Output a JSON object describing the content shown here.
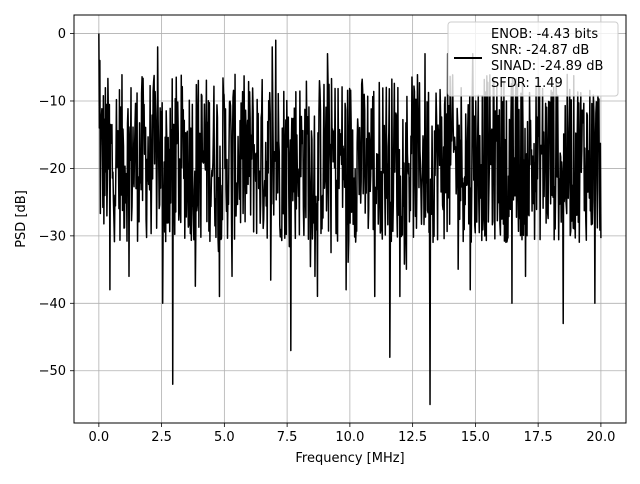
{
  "chart_data": {
    "type": "line",
    "title": "",
    "xlabel": "Frequency [MHz]",
    "ylabel": "PSD [dB]",
    "xlim": [
      -0.99,
      21.0
    ],
    "ylim": [
      -57.75,
      2.75
    ],
    "xticks": [
      0.0,
      2.5,
      5.0,
      7.5,
      10.0,
      12.5,
      15.0,
      17.5,
      20.0
    ],
    "xtick_labels": [
      "0.0",
      "2.5",
      "5.0",
      "7.5",
      "10.0",
      "12.5",
      "15.0",
      "17.5",
      "20.0"
    ],
    "yticks": [
      0,
      -10,
      -20,
      -30,
      -40,
      -50
    ],
    "ytick_labels": [
      "0",
      "−10",
      "−20",
      "−30",
      "−40",
      "−50"
    ],
    "grid": true,
    "legend_position": "upper right",
    "legend_lines": [
      "ENOB: -4.43 bits",
      "SNR: -24.87 dB",
      "SINAD: -24.89 dB",
      "SFDR: 1.49"
    ],
    "line_color": "#000000",
    "series": [
      {
        "name": "ENOB: -4.43 bits",
        "x_range": [
          0,
          20
        ],
        "n_points": 1000,
        "band_min_db": -31,
        "band_max_db": -6,
        "peak": {
          "x": 0.0,
          "y": 0
        },
        "notable_dips": [
          {
            "x": 0.45,
            "y": -38
          },
          {
            "x": 1.2,
            "y": -36
          },
          {
            "x": 2.55,
            "y": -40
          },
          {
            "x": 2.95,
            "y": -52
          },
          {
            "x": 4.8,
            "y": -39
          },
          {
            "x": 5.3,
            "y": -36
          },
          {
            "x": 7.65,
            "y": -47
          },
          {
            "x": 8.6,
            "y": -36
          },
          {
            "x": 9.85,
            "y": -38
          },
          {
            "x": 11.0,
            "y": -39
          },
          {
            "x": 11.6,
            "y": -48
          },
          {
            "x": 12.0,
            "y": -39
          },
          {
            "x": 13.2,
            "y": -55
          },
          {
            "x": 14.8,
            "y": -38
          },
          {
            "x": 16.45,
            "y": -40
          },
          {
            "x": 17.0,
            "y": -36
          },
          {
            "x": 18.5,
            "y": -43
          },
          {
            "x": 19.75,
            "y": -40
          }
        ],
        "notable_peaks": [
          {
            "x": 2.35,
            "y": -2
          },
          {
            "x": 6.9,
            "y": -2
          },
          {
            "x": 7.05,
            "y": -1
          },
          {
            "x": 9.1,
            "y": -3
          },
          {
            "x": 13.0,
            "y": -3
          },
          {
            "x": 13.9,
            "y": -3
          },
          {
            "x": 14.9,
            "y": -3
          }
        ]
      }
    ]
  }
}
